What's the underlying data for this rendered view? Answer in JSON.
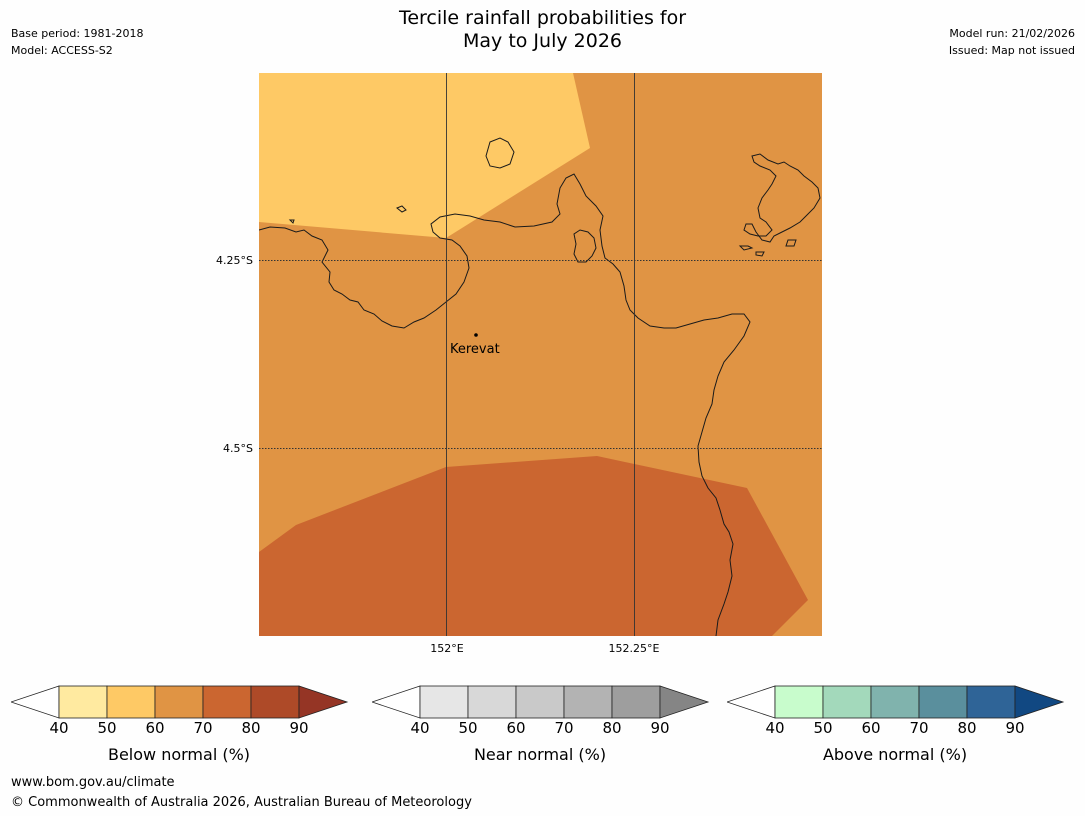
{
  "header": {
    "title_line1": "Tercile rainfall probabilities for",
    "title_line2": "May to July 2026",
    "base_period": "Base period: 1981-2018",
    "model": "Model: ACCESS-S2",
    "model_run": "Model run: 21/02/2026",
    "issued": "Issued: Map not issued"
  },
  "map": {
    "place": "Kerevat",
    "lat_labels": [
      "4.25°S",
      "4.5°S"
    ],
    "lon_labels": [
      "152°E",
      "152.25°E"
    ],
    "region_colors": {
      "below_50_60": "#fec965",
      "below_60_70": "#e09444",
      "below_70_80": "#cb6630"
    }
  },
  "colorbars": [
    {
      "id": "below",
      "label": "Below normal (%)",
      "ticks": [
        "40",
        "50",
        "60",
        "70",
        "80",
        "90"
      ],
      "colors": [
        "#ffeaa0",
        "#fec965",
        "#e09444",
        "#cb6630",
        "#ae4a28"
      ],
      "over_color": "#953525"
    },
    {
      "id": "near",
      "label": "Near normal (%)",
      "ticks": [
        "40",
        "50",
        "60",
        "70",
        "80",
        "90"
      ],
      "colors": [
        "#e6e6e6",
        "#d8d8d8",
        "#c9c9c9",
        "#b3b3b3",
        "#9e9e9e"
      ],
      "over_color": "#858585"
    },
    {
      "id": "above",
      "label": "Above normal (%)",
      "ticks": [
        "40",
        "50",
        "60",
        "70",
        "80",
        "90"
      ],
      "colors": [
        "#c8fccc",
        "#a3d9bb",
        "#80b3ad",
        "#5a8f9d",
        "#2f6497"
      ],
      "over_color": "#114882"
    }
  ],
  "footer": {
    "url": "www.bom.gov.au/climate",
    "copyright": "© Commonwealth of Australia 2026, Australian Bureau of Meteorology"
  }
}
